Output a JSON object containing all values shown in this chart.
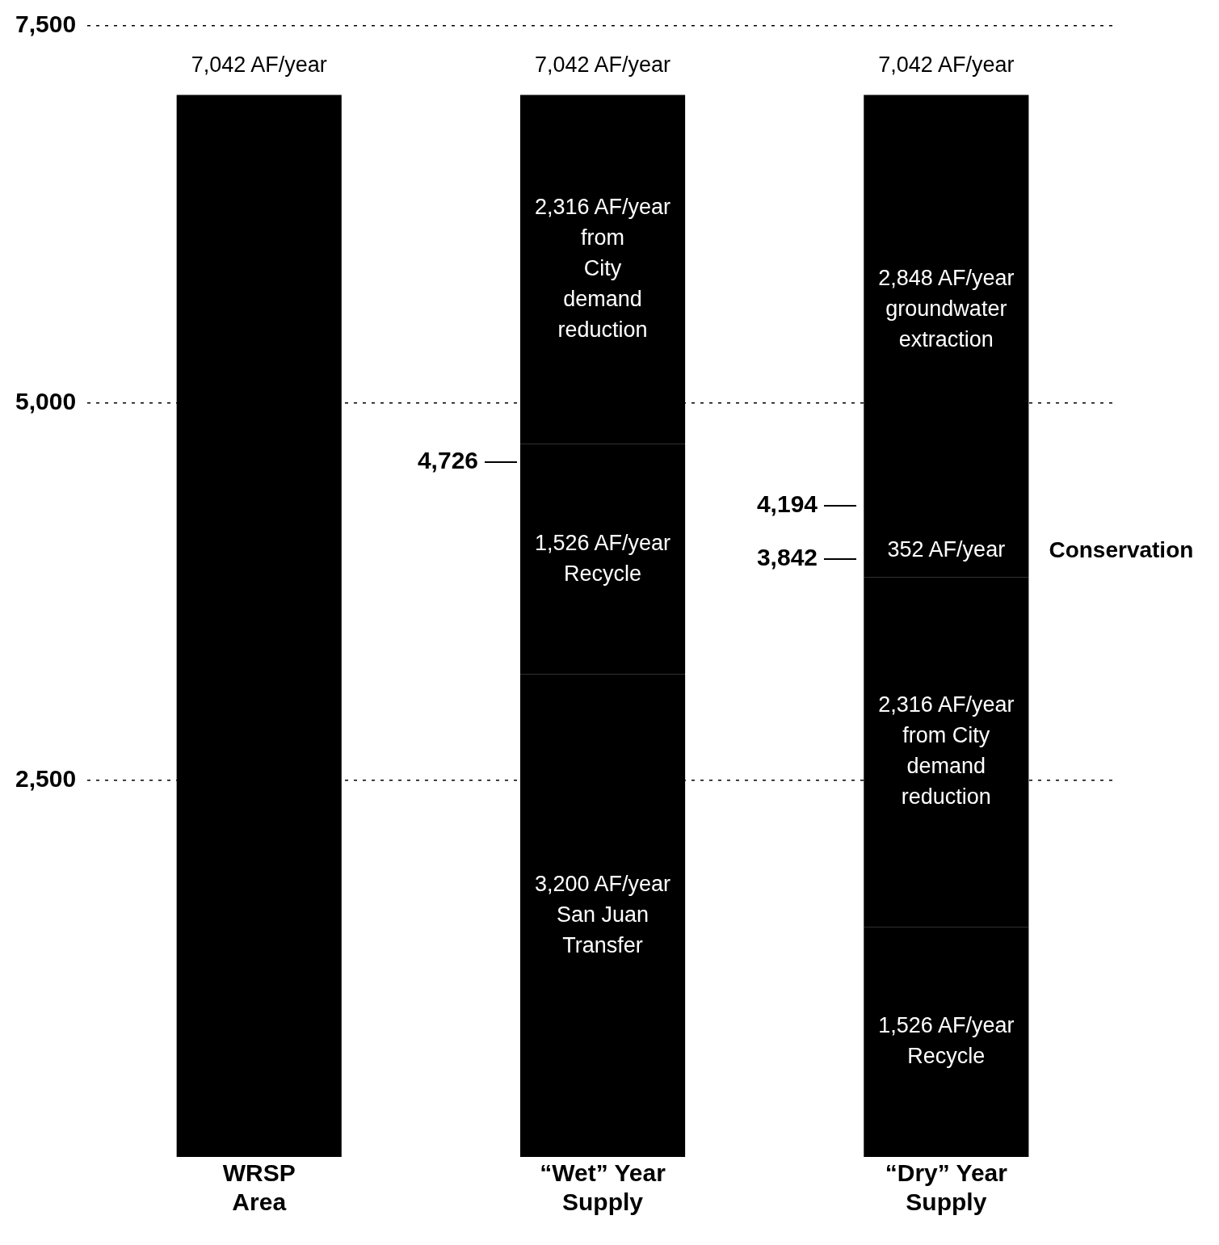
{
  "chart_data": {
    "type": "bar",
    "stacked": true,
    "categories": [
      "WRSP Area",
      "“Wet” Year Supply",
      "“Dry” Year Supply"
    ],
    "series": [
      {
        "color": "#000000",
        "values": [
          7042,
          3200,
          1526
        ],
        "value_labels": [
          null,
          "3,200 AF/year\nSan Juan\nTransfer",
          "1,526 AF/year\nRecycle"
        ]
      },
      {
        "color": "#000000",
        "values": [
          null,
          1526,
          2316
        ],
        "value_labels": [
          null,
          "1,526 AF/year\nRecycle",
          "2,316 AF/year\nfrom City\ndemand\nreduction"
        ]
      },
      {
        "name": "Conservation",
        "color": "#000000",
        "values": [
          null,
          null,
          352
        ],
        "value_labels": [
          null,
          null,
          "352 AF/year"
        ]
      },
      {
        "color": "#000000",
        "values": [
          null,
          2316,
          2848
        ],
        "value_labels": [
          null,
          "2,316 AF/year\nfrom\nCity\ndemand\nreduction",
          "2,848 AF/year\ngroundwater\nextraction"
        ]
      }
    ],
    "totals": [
      "7,042 AF/year",
      "7,042 AF/year",
      "7,042 AF/year"
    ],
    "ylim": [
      0,
      7500
    ],
    "yticks": [
      {
        "value": 2500,
        "label": "2,500"
      },
      {
        "value": 5000,
        "label": "5,000"
      },
      {
        "value": 7500,
        "label": "7,500"
      }
    ],
    "grid": "y",
    "legend": false,
    "annotations": [
      "4,726",
      "4,194",
      "3,842"
    ]
  }
}
